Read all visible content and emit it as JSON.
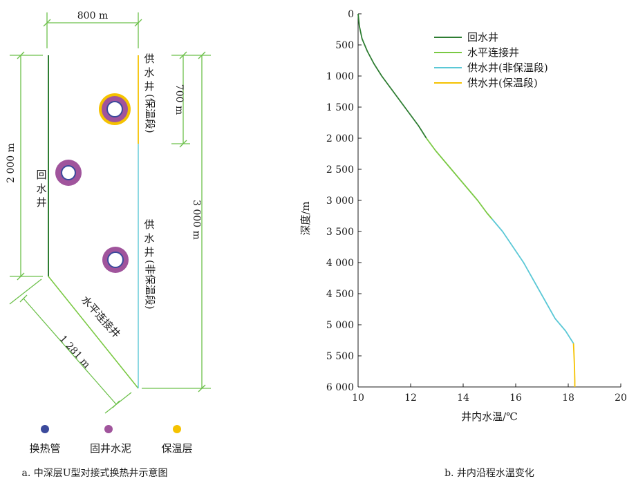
{
  "colors": {
    "dim_line": "#6cc04a",
    "return_well": "#2e7d32",
    "horizontal": "#7ac943",
    "supply_uninsulated": "#5bc8d6",
    "supply_insulated": "#f5c200",
    "pipe_blue": "#3b4a9c",
    "cement_purple": "#a0549c",
    "insulation_yellow": "#f5c200"
  },
  "left": {
    "dim_top": "800 m",
    "dim_right_small": "700 m",
    "dim_right_large": "3 000 m",
    "dim_left": "2 000 m",
    "dim_diag": "1 281 m",
    "label_return": "回水井",
    "label_supply_ins_1": "供水井",
    "label_supply_ins_2": "(保温段)",
    "label_supply_non_1": "供水井",
    "label_supply_non_2": "(非保温段)",
    "label_horizontal": "水平连接井",
    "legend": [
      {
        "label": "换热管",
        "icon": "blue-dot-icon"
      },
      {
        "label": "固井水泥",
        "icon": "purple-dot-icon"
      },
      {
        "label": "保温层",
        "icon": "yellow-dot-icon"
      }
    ],
    "caption": "a. 中深层U型对接式换热井示意图"
  },
  "chart_data": {
    "type": "line",
    "xlabel": "井内水温/℃",
    "ylabel": "深度/m",
    "xlim": [
      10,
      20
    ],
    "ylim": [
      0,
      6000
    ],
    "y_inverted": true,
    "x_ticks": [
      "10",
      "12",
      "14",
      "16",
      "18",
      "20"
    ],
    "y_ticks": [
      "0",
      "500",
      "1 000",
      "1 500",
      "2 000",
      "2 500",
      "3 000",
      "3 500",
      "4 000",
      "4 500",
      "5 000",
      "5 500",
      "6 000"
    ],
    "legend_position": "top-right",
    "series": [
      {
        "name": "回水井",
        "color": "#2e7d32",
        "points": [
          [
            10.0,
            0
          ],
          [
            10.05,
            200
          ],
          [
            10.15,
            400
          ],
          [
            10.35,
            600
          ],
          [
            10.6,
            800
          ],
          [
            10.9,
            1000
          ],
          [
            11.25,
            1200
          ],
          [
            11.6,
            1400
          ],
          [
            11.95,
            1600
          ],
          [
            12.3,
            1800
          ],
          [
            12.6,
            2000
          ]
        ]
      },
      {
        "name": "水平连接井",
        "color": "#7ac943",
        "points": [
          [
            12.6,
            2000
          ],
          [
            12.95,
            2200
          ],
          [
            13.35,
            2400
          ],
          [
            13.75,
            2600
          ],
          [
            14.15,
            2800
          ],
          [
            14.55,
            3000
          ],
          [
            14.9,
            3200
          ],
          [
            15.1,
            3300
          ]
        ]
      },
      {
        "name": "供水井(非保温段)",
        "color": "#5bc8d6",
        "points": [
          [
            15.1,
            3300
          ],
          [
            15.5,
            3500
          ],
          [
            15.9,
            3750
          ],
          [
            16.3,
            4000
          ],
          [
            16.7,
            4300
          ],
          [
            17.1,
            4600
          ],
          [
            17.5,
            4900
          ],
          [
            17.9,
            5100
          ],
          [
            18.2,
            5300
          ]
        ]
      },
      {
        "name": "供水井(保温段)",
        "color": "#f5c200",
        "points": [
          [
            18.2,
            5300
          ],
          [
            18.22,
            5500
          ],
          [
            18.24,
            5700
          ],
          [
            18.25,
            5900
          ],
          [
            18.25,
            6000
          ]
        ]
      }
    ],
    "caption": "b. 井内沿程水温变化"
  }
}
